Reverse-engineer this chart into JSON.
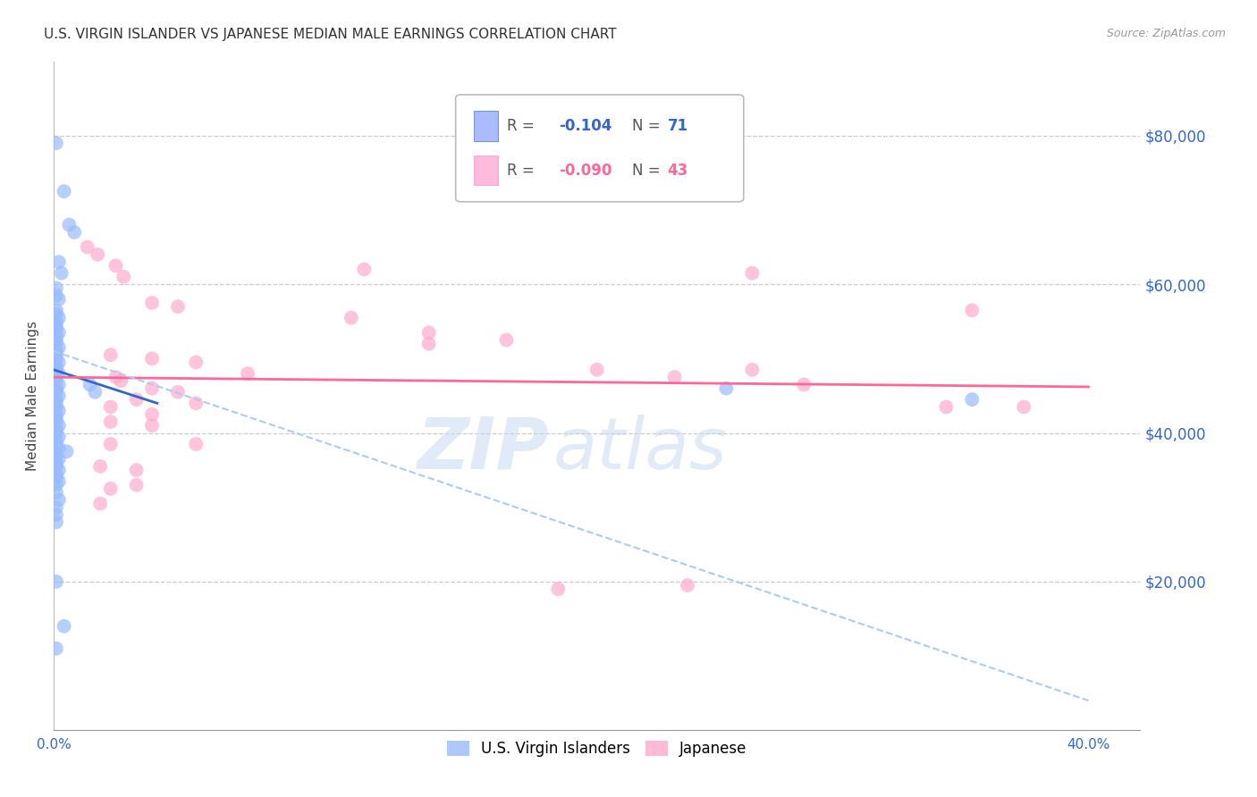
{
  "title": "U.S. VIRGIN ISLANDER VS JAPANESE MEDIAN MALE EARNINGS CORRELATION CHART",
  "source": "Source: ZipAtlas.com",
  "ylabel": "Median Male Earnings",
  "ytick_labels": [
    "$80,000",
    "$60,000",
    "$40,000",
    "$20,000"
  ],
  "ytick_values": [
    80000,
    60000,
    40000,
    20000
  ],
  "ylim": [
    0,
    90000
  ],
  "xlim": [
    0.0,
    0.42
  ],
  "blue_color": "#99bbff",
  "pink_color": "#ffaacc",
  "blue_line_color": "#3366cc",
  "pink_line_color": "#ff6699",
  "dashed_line_color": "#aaccee",
  "watermark_color": "#c5d8f0",
  "scatter_blue": [
    [
      0.001,
      79000
    ],
    [
      0.004,
      72500
    ],
    [
      0.006,
      68000
    ],
    [
      0.008,
      67000
    ],
    [
      0.002,
      63000
    ],
    [
      0.003,
      61500
    ],
    [
      0.001,
      59500
    ],
    [
      0.001,
      58500
    ],
    [
      0.002,
      58000
    ],
    [
      0.001,
      56500
    ],
    [
      0.001,
      56000
    ],
    [
      0.002,
      55500
    ],
    [
      0.001,
      55000
    ],
    [
      0.001,
      54500
    ],
    [
      0.001,
      54000
    ],
    [
      0.002,
      53500
    ],
    [
      0.001,
      53000
    ],
    [
      0.001,
      52500
    ],
    [
      0.001,
      52000
    ],
    [
      0.002,
      51500
    ],
    [
      0.001,
      51000
    ],
    [
      0.001,
      50500
    ],
    [
      0.001,
      50000
    ],
    [
      0.002,
      49500
    ],
    [
      0.001,
      49000
    ],
    [
      0.001,
      48500
    ],
    [
      0.002,
      48000
    ],
    [
      0.001,
      47500
    ],
    [
      0.001,
      47000
    ],
    [
      0.002,
      46500
    ],
    [
      0.001,
      46000
    ],
    [
      0.001,
      45500
    ],
    [
      0.002,
      45000
    ],
    [
      0.001,
      44500
    ],
    [
      0.001,
      44000
    ],
    [
      0.001,
      43500
    ],
    [
      0.002,
      43000
    ],
    [
      0.001,
      42500
    ],
    [
      0.001,
      42000
    ],
    [
      0.001,
      41500
    ],
    [
      0.002,
      41000
    ],
    [
      0.001,
      40500
    ],
    [
      0.001,
      40000
    ],
    [
      0.002,
      39500
    ],
    [
      0.001,
      39000
    ],
    [
      0.001,
      38500
    ],
    [
      0.002,
      38000
    ],
    [
      0.001,
      37500
    ],
    [
      0.001,
      37000
    ],
    [
      0.002,
      36500
    ],
    [
      0.001,
      36000
    ],
    [
      0.001,
      35500
    ],
    [
      0.002,
      35000
    ],
    [
      0.001,
      34500
    ],
    [
      0.001,
      34000
    ],
    [
      0.002,
      33500
    ],
    [
      0.001,
      33000
    ],
    [
      0.014,
      46500
    ],
    [
      0.016,
      45500
    ],
    [
      0.001,
      32000
    ],
    [
      0.002,
      31000
    ],
    [
      0.001,
      30000
    ],
    [
      0.001,
      29000
    ],
    [
      0.005,
      37500
    ],
    [
      0.001,
      28000
    ],
    [
      0.001,
      20000
    ],
    [
      0.004,
      14000
    ],
    [
      0.001,
      11000
    ],
    [
      0.26,
      46000
    ],
    [
      0.355,
      44500
    ]
  ],
  "scatter_pink": [
    [
      0.013,
      65000
    ],
    [
      0.017,
      64000
    ],
    [
      0.12,
      62000
    ],
    [
      0.27,
      61500
    ],
    [
      0.024,
      62500
    ],
    [
      0.027,
      61000
    ],
    [
      0.038,
      57500
    ],
    [
      0.048,
      57000
    ],
    [
      0.115,
      55500
    ],
    [
      0.145,
      53500
    ],
    [
      0.175,
      52500
    ],
    [
      0.022,
      50500
    ],
    [
      0.038,
      50000
    ],
    [
      0.055,
      49500
    ],
    [
      0.075,
      48000
    ],
    [
      0.024,
      47500
    ],
    [
      0.026,
      47000
    ],
    [
      0.038,
      46000
    ],
    [
      0.048,
      45500
    ],
    [
      0.032,
      44500
    ],
    [
      0.055,
      44000
    ],
    [
      0.022,
      43500
    ],
    [
      0.038,
      42500
    ],
    [
      0.022,
      41500
    ],
    [
      0.038,
      41000
    ],
    [
      0.022,
      38500
    ],
    [
      0.055,
      38500
    ],
    [
      0.018,
      35500
    ],
    [
      0.032,
      35000
    ],
    [
      0.022,
      32500
    ],
    [
      0.032,
      33000
    ],
    [
      0.018,
      30500
    ],
    [
      0.24,
      47500
    ],
    [
      0.345,
      43500
    ],
    [
      0.355,
      56500
    ],
    [
      0.145,
      52000
    ],
    [
      0.21,
      48500
    ],
    [
      0.29,
      46500
    ],
    [
      0.27,
      48500
    ],
    [
      0.245,
      19500
    ],
    [
      0.195,
      19000
    ],
    [
      0.375,
      43500
    ]
  ],
  "blue_trendline": [
    [
      0.0,
      48500
    ],
    [
      0.04,
      44000
    ]
  ],
  "pink_trendline": [
    [
      0.0,
      47500
    ],
    [
      0.4,
      46200
    ]
  ],
  "dashed_trendline": [
    [
      0.0,
      51000
    ],
    [
      0.4,
      4000
    ]
  ],
  "xtick_positions": [
    0.0,
    0.05,
    0.1,
    0.15,
    0.2,
    0.25,
    0.3,
    0.35,
    0.4
  ],
  "xtick_labels": [
    "0.0%",
    "",
    "",
    "",
    "",
    "",
    "",
    "",
    "40.0%"
  ]
}
